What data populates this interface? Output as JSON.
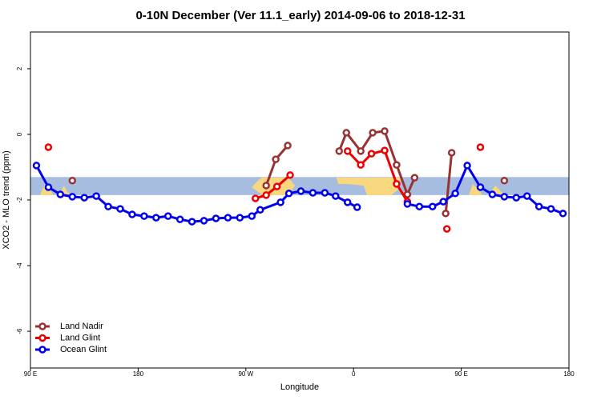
{
  "chart_data": {
    "type": "line",
    "title": "0-10N December (Ver 11.1_early)   2014-09-06 to 2018-12-31",
    "x_label": "Longitude",
    "y_label": "XCO2 - MLO trend (ppm)",
    "xlim": [
      90,
      540
    ],
    "ylim": [
      -7.12,
      3.12
    ],
    "xticks": [
      {
        "value": 90,
        "label": "90 E"
      },
      180,
      {
        "value": 270,
        "label": "90 W"
      },
      {
        "value": 360,
        "label": "0"
      },
      {
        "value": 450,
        "label": "90 E"
      },
      {
        "value": 540,
        "label": "180"
      }
    ],
    "yticks": [
      2,
      0,
      -2,
      -4,
      -6
    ],
    "reference_band": {
      "range": [
        -1.85,
        -1.3
      ],
      "color": "#a7bddf"
    },
    "legend": "bottom-left",
    "series": [
      {
        "name": "Land Nadir",
        "color": "#993333",
        "x": [
          125,
          null,
          287,
          295,
          305,
          null,
          348,
          354,
          366,
          376,
          386,
          396,
          405,
          411,
          null,
          437,
          442,
          null,
          486
        ],
        "values": [
          -1.41,
          null,
          -1.56,
          -0.76,
          -0.34,
          null,
          -0.51,
          0.05,
          -0.51,
          0.05,
          0.1,
          -0.93,
          -1.83,
          -1.32,
          null,
          -2.41,
          -0.56,
          null,
          -1.41
        ]
      },
      {
        "name": "Land Glint",
        "color": "#ee0000",
        "x": [
          105,
          null,
          278,
          287,
          296,
          307,
          null,
          355,
          366,
          375,
          386,
          396,
          405,
          null,
          438,
          null,
          466
        ],
        "values": [
          -0.39,
          null,
          -1.95,
          -1.85,
          -1.59,
          -1.24,
          null,
          -0.51,
          -0.93,
          -0.59,
          -0.49,
          -1.51,
          -2.05,
          null,
          -2.88,
          null,
          -0.39
        ]
      },
      {
        "name": "Ocean Glint",
        "color": "#0000ee",
        "x": [
          95,
          105,
          115,
          125,
          135,
          145,
          155,
          165,
          175,
          185,
          195,
          205,
          215,
          225,
          235,
          245,
          255,
          265,
          275,
          282,
          299,
          306,
          316,
          326,
          336,
          345,
          355,
          363,
          null,
          405,
          415,
          426,
          435,
          445,
          455,
          466,
          476,
          486,
          496,
          505,
          515,
          525,
          535
        ],
        "values": [
          -0.95,
          -1.61,
          -1.83,
          -1.9,
          -1.93,
          -1.88,
          -2.2,
          -2.27,
          -2.44,
          -2.49,
          -2.54,
          -2.49,
          -2.59,
          -2.66,
          -2.63,
          -2.56,
          -2.54,
          -2.54,
          -2.49,
          -2.3,
          -2.07,
          -1.8,
          -1.73,
          -1.78,
          -1.78,
          -1.88,
          -2.07,
          -2.22,
          null,
          -2.12,
          -2.2,
          -2.2,
          -2.05,
          -1.8,
          -0.95,
          -1.61,
          -1.83,
          -1.9,
          -1.93,
          -1.88,
          -2.2,
          -2.27,
          -2.41
        ]
      }
    ]
  }
}
